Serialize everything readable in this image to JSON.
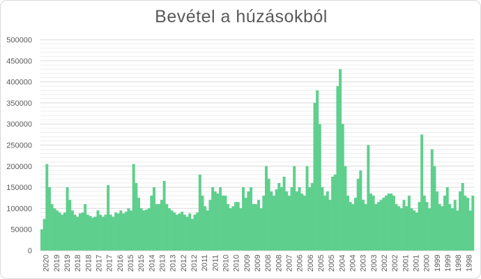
{
  "chart_data": {
    "type": "bar",
    "title": "Bevétel a húzásokból",
    "xlabel": "",
    "ylabel": "",
    "ylim": [
      0,
      500000
    ],
    "yticks": [
      0,
      50000,
      100000,
      150000,
      200000,
      250000,
      300000,
      350000,
      400000,
      450000,
      500000
    ],
    "ytick_labels": [
      "0",
      "50000",
      "100000",
      "150000",
      "200000",
      "250000",
      "300000",
      "350000",
      "400000",
      "450000",
      "500000"
    ],
    "xtick_labels": [
      "2020",
      "2019",
      "2019",
      "2018",
      "2018",
      "2017",
      "2017",
      "2016",
      "2015",
      "2015",
      "2014",
      "2013",
      "2013",
      "2012",
      "2012",
      "2011",
      "2011",
      "2010",
      "2010",
      "2009",
      "2009",
      "2008",
      "2008",
      "2007",
      "2006",
      "2006",
      "2005",
      "2005",
      "2004",
      "2004",
      "2003",
      "2003",
      "2002",
      "2002",
      "2001",
      "2001",
      "2000",
      "1999",
      "1999",
      "1998",
      "1998"
    ],
    "bar_color": "#5ecf8d",
    "grid": true,
    "series": [
      {
        "values": [
          50000,
          75000,
          205000,
          150000,
          110000,
          100000,
          95000,
          90000,
          85000,
          90000,
          150000,
          120000,
          95000,
          85000,
          80000,
          88000,
          90000,
          110000,
          85000,
          82000,
          78000,
          80000,
          95000,
          85000,
          80000,
          85000,
          155000,
          85000,
          80000,
          90000,
          88000,
          95000,
          88000,
          92000,
          100000,
          95000,
          205000,
          160000,
          125000,
          100000,
          95000,
          97000,
          100000,
          130000,
          150000,
          110000,
          110000,
          120000,
          165000,
          110000,
          100000,
          95000,
          90000,
          85000,
          88000,
          92000,
          85000,
          80000,
          88000,
          75000,
          85000,
          90000,
          180000,
          130000,
          105000,
          95000,
          120000,
          150000,
          140000,
          135000,
          150000,
          130000,
          130000,
          110000,
          100000,
          105000,
          115000,
          115000,
          100000,
          150000,
          125000,
          140000,
          150000,
          110000,
          110000,
          120000,
          100000,
          130000,
          200000,
          170000,
          140000,
          130000,
          145000,
          160000,
          150000,
          175000,
          140000,
          130000,
          150000,
          200000,
          140000,
          150000,
          135000,
          130000,
          200000,
          150000,
          160000,
          350000,
          380000,
          300000,
          150000,
          130000,
          140000,
          120000,
          175000,
          180000,
          390000,
          430000,
          300000,
          200000,
          130000,
          115000,
          110000,
          125000,
          170000,
          190000,
          120000,
          110000,
          250000,
          135000,
          130000,
          110000,
          115000,
          120000,
          125000,
          130000,
          135000,
          135000,
          130000,
          110000,
          105000,
          100000,
          120000,
          105000,
          130000,
          100000,
          95000,
          90000,
          115000,
          275000,
          130000,
          115000,
          100000,
          240000,
          200000,
          140000,
          110000,
          105000,
          130000,
          150000,
          110000,
          100000,
          120000,
          95000,
          140000,
          160000,
          130000,
          125000,
          95000,
          130000
        ]
      }
    ]
  }
}
